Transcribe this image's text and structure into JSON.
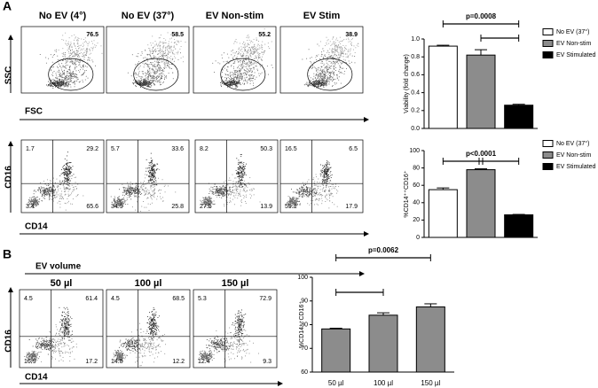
{
  "panel_labels": [
    "A",
    "B"
  ],
  "scatter_row": {
    "titles": [
      "No EV (4°)",
      "No EV (37°)",
      "EV Non-stim",
      "EV Stim"
    ],
    "gates": [
      76.5,
      58.5,
      55.2,
      38.9
    ],
    "y_label": "SSC",
    "x_label": "FSC"
  },
  "quadrant_row": {
    "quadrants": [
      [
        1.7,
        29.2,
        3.4,
        65.6
      ],
      [
        5.7,
        33.6,
        34.9,
        25.8
      ],
      [
        8.2,
        50.3,
        27.5,
        13.9
      ],
      [
        16.5,
        6.5,
        59.1,
        17.9
      ]
    ],
    "y_label": "CD16",
    "x_label": "CD14"
  },
  "volume_row": {
    "heading": "EV volume",
    "titles": [
      "50 µl",
      "100 µl",
      "150 µl"
    ],
    "quadrants": [
      [
        4.5,
        61.4,
        16.9,
        17.2
      ],
      [
        4.5,
        68.5,
        14.8,
        12.2
      ],
      [
        5.3,
        72.9,
        12.4,
        9.3
      ]
    ],
    "y_label": "CD16",
    "x_label": "CD14"
  },
  "chart_data": [
    {
      "type": "bar",
      "ylabel": "Viability (fold change)",
      "annotation": "p=0.0008",
      "categories": [
        null
      ],
      "series": [
        {
          "name": "No EV (37°)",
          "color": "#ffffff",
          "values": [
            0.92
          ],
          "errors": [
            0.01
          ]
        },
        {
          "name": "EV Non-stim",
          "color": "#8c8c8c",
          "values": [
            0.82
          ],
          "errors": [
            0.06
          ]
        },
        {
          "name": "EV Stimulated",
          "color": "#000000",
          "values": [
            0.26
          ],
          "errors": [
            0.01
          ]
        }
      ],
      "ylim": [
        0,
        1.0
      ],
      "yticks": [
        {
          "value": 0,
          "label": "0.0"
        },
        0.2,
        0.4,
        0.6,
        0.8,
        {
          "value": 1.0,
          "label": "1.0"
        }
      ],
      "legend": "right"
    },
    {
      "type": "bar",
      "ylabel": "%CD14⁺⁺CD16⁺",
      "annotation": "p<0.0001",
      "categories": [
        null
      ],
      "series": [
        {
          "name": "No EV (37°)",
          "color": "#ffffff",
          "values": [
            55
          ],
          "errors": [
            2
          ]
        },
        {
          "name": "EV Non-stim",
          "color": "#8c8c8c",
          "values": [
            78
          ],
          "errors": [
            1
          ]
        },
        {
          "name": "EV Stimulated",
          "color": "#000000",
          "values": [
            26
          ],
          "errors": [
            0.5
          ]
        }
      ],
      "ylim": [
        0,
        100
      ],
      "yticks": [
        0,
        20,
        40,
        60,
        80,
        100
      ],
      "legend": "right"
    },
    {
      "type": "bar",
      "ylabel": "%CD14⁺⁺CD16⁺",
      "annotation": "p=0.0062",
      "categories": [
        "50 µl",
        "100 µl",
        "150 µl"
      ],
      "values": [
        78.2,
        84,
        87.5
      ],
      "errors": [
        0.3,
        1,
        1.3
      ],
      "color": "#8c8c8c",
      "ylim": [
        60,
        100
      ],
      "yticks": [
        60,
        70,
        80,
        90,
        100
      ]
    }
  ]
}
